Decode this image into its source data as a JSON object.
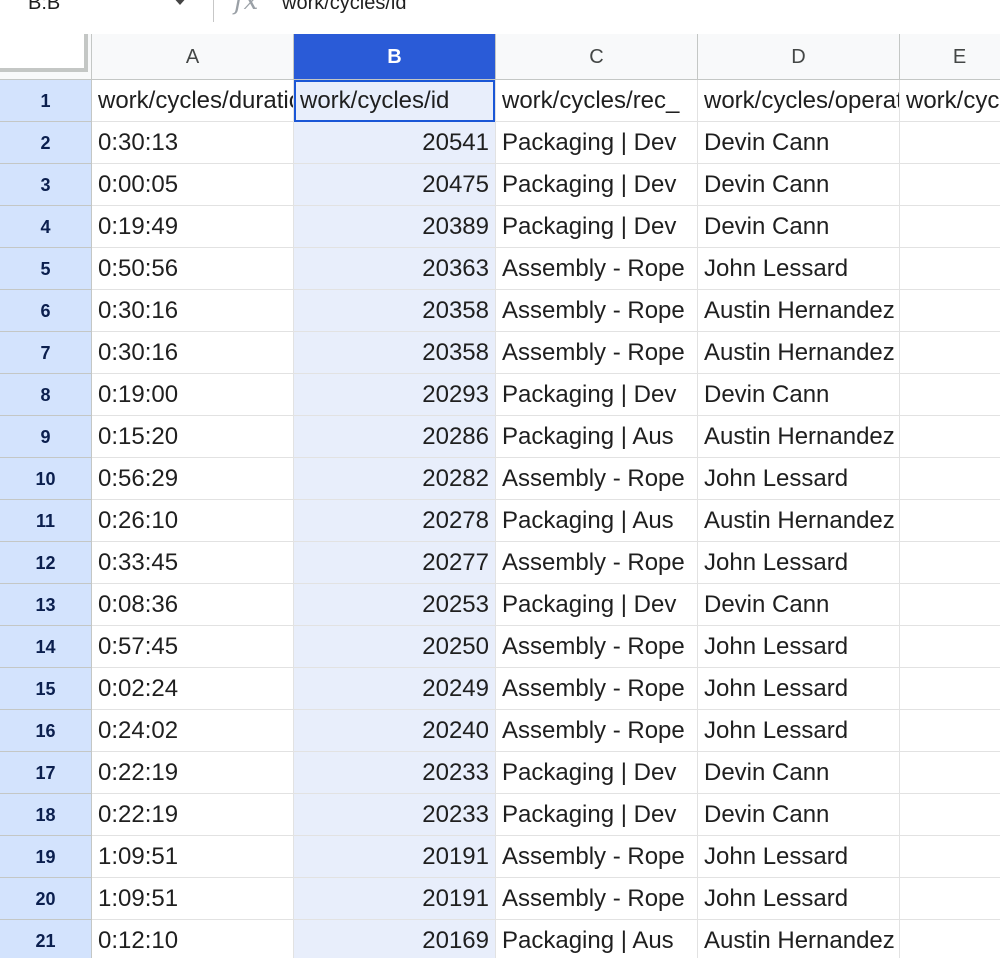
{
  "formula_bar": {
    "name_box": "B:B",
    "fx_symbol": "fx",
    "formula": "work/cycles/id"
  },
  "columns": [
    "A",
    "B",
    "C",
    "D",
    "E"
  ],
  "selected_column": "B",
  "rows": [
    {
      "n": "1",
      "a": "work/cycles/duration",
      "b": "work/cycles/id",
      "c": "work/cycles/rec_",
      "d": "work/cycles/operator",
      "e": "work/cycles"
    },
    {
      "n": "2",
      "a": "0:30:13",
      "b": "20541",
      "c": "Packaging | Dev",
      "d": "Devin Cann",
      "e": ""
    },
    {
      "n": "3",
      "a": "0:00:05",
      "b": "20475",
      "c": "Packaging | Dev",
      "d": "Devin Cann",
      "e": ""
    },
    {
      "n": "4",
      "a": "0:19:49",
      "b": "20389",
      "c": "Packaging | Dev",
      "d": "Devin Cann",
      "e": ""
    },
    {
      "n": "5",
      "a": "0:50:56",
      "b": "20363",
      "c": "Assembly - Rope",
      "d": "John Lessard",
      "e": ""
    },
    {
      "n": "6",
      "a": "0:30:16",
      "b": "20358",
      "c": "Assembly - Rope",
      "d": "Austin Hernandez",
      "e": ""
    },
    {
      "n": "7",
      "a": "0:30:16",
      "b": "20358",
      "c": "Assembly - Rope",
      "d": "Austin Hernandez",
      "e": ""
    },
    {
      "n": "8",
      "a": "0:19:00",
      "b": "20293",
      "c": "Packaging | Dev",
      "d": "Devin Cann",
      "e": ""
    },
    {
      "n": "9",
      "a": "0:15:20",
      "b": "20286",
      "c": "Packaging | Aus",
      "d": "Austin Hernandez",
      "e": ""
    },
    {
      "n": "10",
      "a": "0:56:29",
      "b": "20282",
      "c": "Assembly - Rope",
      "d": "John Lessard",
      "e": ""
    },
    {
      "n": "11",
      "a": "0:26:10",
      "b": "20278",
      "c": "Packaging | Aus",
      "d": "Austin Hernandez",
      "e": ""
    },
    {
      "n": "12",
      "a": "0:33:45",
      "b": "20277",
      "c": "Assembly - Rope",
      "d": "John Lessard",
      "e": ""
    },
    {
      "n": "13",
      "a": "0:08:36",
      "b": "20253",
      "c": "Packaging | Dev",
      "d": "Devin Cann",
      "e": ""
    },
    {
      "n": "14",
      "a": "0:57:45",
      "b": "20250",
      "c": "Assembly - Rope",
      "d": "John Lessard",
      "e": ""
    },
    {
      "n": "15",
      "a": "0:02:24",
      "b": "20249",
      "c": "Assembly - Rope",
      "d": "John Lessard",
      "e": ""
    },
    {
      "n": "16",
      "a": "0:24:02",
      "b": "20240",
      "c": "Assembly - Rope",
      "d": "John Lessard",
      "e": ""
    },
    {
      "n": "17",
      "a": "0:22:19",
      "b": "20233",
      "c": "Packaging | Dev",
      "d": "Devin Cann",
      "e": ""
    },
    {
      "n": "18",
      "a": "0:22:19",
      "b": "20233",
      "c": "Packaging | Dev",
      "d": "Devin Cann",
      "e": ""
    },
    {
      "n": "19",
      "a": "1:09:51",
      "b": "20191",
      "c": "Assembly - Rope",
      "d": "John Lessard",
      "e": ""
    },
    {
      "n": "20",
      "a": "1:09:51",
      "b": "20191",
      "c": "Assembly - Rope",
      "d": "John Lessard",
      "e": ""
    },
    {
      "n": "21",
      "a": "0:12:10",
      "b": "20169",
      "c": "Packaging | Aus",
      "d": "Austin Hernandez",
      "e": ""
    }
  ],
  "colors": {
    "selected_header": "#2a5bd7",
    "selected_column_fill": "#e8eefb",
    "row_header_fill": "#d3e3fd",
    "active_border": "#1a56d6"
  }
}
